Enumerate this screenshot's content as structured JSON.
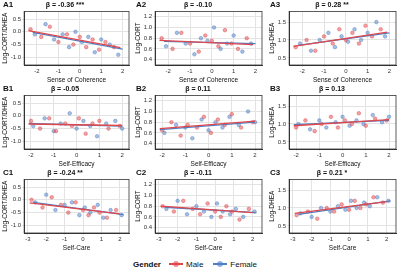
{
  "legend_title": "Gender",
  "chart_data": [
    {
      "type": "scatter",
      "panel": "A1",
      "title": "β = -0.36 ***",
      "x_label": "Sense of Coherence",
      "y_label": "Log-CORT/DHEA",
      "xlim": [
        -2.6,
        2.3
      ],
      "xticks": [
        -2,
        -1,
        0,
        1,
        2
      ],
      "ylim": [
        -1.3,
        0.8
      ],
      "yticks": [
        {
          "value": -1,
          "label": "-1.0"
        },
        -0.5,
        {
          "value": 0,
          "label": "0.0"
        },
        0.5
      ],
      "grid": true,
      "series": [
        {
          "name": "Male",
          "color": "#e0474c",
          "x": [
            -2.3,
            -1.8,
            -1.4,
            -1.0,
            -0.6,
            -0.3,
            0.0,
            0.3,
            0.6,
            0.9,
            1.2,
            1.6
          ],
          "values": [
            0.1,
            -0.2,
            0.2,
            -0.4,
            -0.1,
            -0.5,
            -0.2,
            -0.6,
            -0.3,
            -0.7,
            -0.4,
            -0.6
          ],
          "fit_x": [
            -2.4,
            1.9
          ],
          "fit_values": [
            0.05,
            -0.62
          ]
        },
        {
          "name": "Female",
          "color": "#4f7fc4",
          "x": [
            -2.1,
            -1.6,
            -1.2,
            -0.8,
            -0.5,
            -0.2,
            0.1,
            0.4,
            0.7,
            1.0,
            1.4,
            1.8
          ],
          "values": [
            -0.1,
            0.3,
            -0.3,
            -0.1,
            -0.6,
            0.0,
            -0.4,
            -0.2,
            -0.8,
            -0.3,
            -0.5,
            -0.9
          ],
          "fit_x": [
            -2.2,
            2.0
          ],
          "fit_values": [
            -0.02,
            -0.68
          ]
        }
      ]
    },
    {
      "type": "scatter",
      "panel": "A2",
      "title": "β = -0.10",
      "x_label": "Sense of Coherence",
      "y_label": "Log-CORT",
      "xlim": [
        -2.6,
        2.3
      ],
      "xticks": [
        -2,
        -1,
        0,
        1,
        2
      ],
      "ylim": [
        0.3,
        1.3
      ],
      "yticks": [
        0.4,
        0.6,
        0.8,
        {
          "value": 1,
          "label": "1.0"
        },
        1.2
      ],
      "grid": true,
      "series": [
        {
          "name": "Male",
          "color": "#e0474c",
          "x": [
            -2.3,
            -1.8,
            -1.4,
            -1.0,
            -0.6,
            -0.3,
            0.0,
            0.3,
            0.6,
            0.9,
            1.2,
            1.6
          ],
          "values": [
            0.8,
            0.6,
            0.9,
            0.7,
            0.55,
            0.85,
            0.75,
            0.65,
            0.95,
            0.7,
            0.6,
            0.8
          ],
          "fit_x": [
            -2.4,
            1.9
          ],
          "fit_values": [
            0.76,
            0.68
          ]
        },
        {
          "name": "Female",
          "color": "#4f7fc4",
          "x": [
            -2.1,
            -1.6,
            -1.2,
            -0.8,
            -0.5,
            -0.2,
            0.1,
            0.4,
            0.7,
            1.0,
            1.4,
            1.8
          ],
          "values": [
            0.65,
            0.9,
            0.7,
            0.5,
            0.8,
            0.75,
            1.0,
            0.6,
            0.7,
            0.85,
            0.55,
            0.7
          ],
          "fit_x": [
            -2.2,
            2.0
          ],
          "fit_values": [
            0.74,
            0.7
          ]
        }
      ]
    },
    {
      "type": "scatter",
      "panel": "A3",
      "title": "β = 0.28 **",
      "x_label": "Sense of Coherence",
      "y_label": "Log-DHEA",
      "xlim": [
        -2.6,
        2.3
      ],
      "xticks": [
        -2,
        -1,
        0,
        1,
        2
      ],
      "ylim": [
        0.3,
        1.8
      ],
      "yticks": [
        0.5,
        {
          "value": 1,
          "label": "1.0"
        },
        1.5
      ],
      "grid": true,
      "series": [
        {
          "name": "Male",
          "color": "#e0474c",
          "x": [
            -2.3,
            -1.8,
            -1.4,
            -1.0,
            -0.6,
            -0.3,
            0.0,
            0.3,
            0.6,
            0.9,
            1.2,
            1.6
          ],
          "values": [
            0.8,
            1.0,
            0.7,
            1.1,
            0.9,
            1.3,
            1.0,
            1.2,
            0.9,
            1.4,
            1.1,
            1.3
          ],
          "fit_x": [
            -2.4,
            1.9
          ],
          "fit_values": [
            0.82,
            1.22
          ]
        },
        {
          "name": "Female",
          "color": "#4f7fc4",
          "x": [
            -2.1,
            -1.6,
            -1.2,
            -0.8,
            -0.5,
            -0.2,
            0.1,
            0.4,
            0.7,
            1.0,
            1.4,
            1.8
          ],
          "values": [
            0.9,
            0.7,
            1.0,
            1.2,
            0.8,
            1.1,
            0.95,
            1.3,
            1.0,
            1.2,
            1.5,
            1.1
          ],
          "fit_x": [
            -2.2,
            2.0
          ],
          "fit_values": [
            0.85,
            1.2
          ]
        }
      ]
    },
    {
      "type": "scatter",
      "panel": "B1",
      "title": "β = -0.05",
      "x_label": "Self-Efficacy",
      "y_label": "Log-CORT/DHEA",
      "xlim": [
        -2.3,
        2.3
      ],
      "xticks": [
        -2,
        -1,
        0,
        1,
        2
      ],
      "ylim": [
        -1.3,
        0.8
      ],
      "yticks": [
        {
          "value": -1,
          "label": "-1.0"
        },
        -0.5,
        {
          "value": 0,
          "label": "0.0"
        },
        0.5
      ],
      "grid": true,
      "series": [
        {
          "name": "Male",
          "color": "#e0474c",
          "x": [
            -2.0,
            -1.6,
            -1.2,
            -0.9,
            -0.5,
            -0.2,
            0.1,
            0.4,
            0.7,
            1.0,
            1.4,
            1.9
          ],
          "values": [
            -0.2,
            -0.5,
            -0.1,
            -0.6,
            -0.3,
            -0.4,
            -0.1,
            -0.7,
            -0.3,
            -0.2,
            -0.5,
            -0.4
          ],
          "fit_x": [
            -2.1,
            2.0
          ],
          "fit_values": [
            -0.32,
            -0.38
          ]
        },
        {
          "name": "Female",
          "color": "#4f7fc4",
          "x": [
            -1.9,
            -1.4,
            -1.0,
            -0.7,
            -0.3,
            0.0,
            0.3,
            0.6,
            0.9,
            1.3,
            1.7,
            2.0
          ],
          "values": [
            -0.4,
            -0.1,
            -0.6,
            -0.3,
            0.1,
            -0.5,
            -0.2,
            -0.4,
            -0.8,
            -0.3,
            -0.2,
            -0.5
          ],
          "fit_x": [
            -2.1,
            2.0
          ],
          "fit_values": [
            -0.3,
            -0.4
          ]
        }
      ]
    },
    {
      "type": "scatter",
      "panel": "B2",
      "title": "β = 0.11",
      "x_label": "Self-Efficacy",
      "y_label": "Log-CORT",
      "xlim": [
        -2.3,
        2.3
      ],
      "xticks": [
        -2,
        -1,
        0,
        1,
        2
      ],
      "ylim": [
        0.3,
        1.3
      ],
      "yticks": [
        0.4,
        0.6,
        0.8,
        {
          "value": 1,
          "label": "1.0"
        },
        1.2
      ],
      "grid": true,
      "series": [
        {
          "name": "Male",
          "color": "#e0474c",
          "x": [
            -2.0,
            -1.6,
            -1.2,
            -0.9,
            -0.5,
            -0.2,
            0.1,
            0.4,
            0.7,
            1.0,
            1.4,
            1.9
          ],
          "values": [
            0.65,
            0.8,
            0.55,
            0.75,
            0.7,
            0.9,
            0.6,
            0.85,
            0.75,
            0.95,
            0.7,
            0.8
          ],
          "fit_x": [
            -2.1,
            2.0
          ],
          "fit_values": [
            0.68,
            0.82
          ]
        },
        {
          "name": "Female",
          "color": "#4f7fc4",
          "x": [
            -1.9,
            -1.4,
            -1.0,
            -0.7,
            -0.3,
            0.0,
            0.3,
            0.6,
            0.9,
            1.3,
            1.7,
            2.0
          ],
          "values": [
            0.6,
            0.75,
            0.7,
            0.5,
            0.85,
            0.65,
            0.8,
            0.7,
            0.9,
            0.75,
            1.0,
            0.8
          ],
          "fit_x": [
            -2.1,
            2.0
          ],
          "fit_values": [
            0.66,
            0.8
          ]
        }
      ]
    },
    {
      "type": "scatter",
      "panel": "B3",
      "title": "β = 0.13",
      "x_label": "Self-Efficacy",
      "y_label": "Log-DHEA",
      "xlim": [
        -2.3,
        2.3
      ],
      "xticks": [
        -2,
        -1,
        0,
        1,
        2
      ],
      "ylim": [
        0.3,
        1.8
      ],
      "yticks": [
        0.5,
        {
          "value": 1,
          "label": "1.0"
        },
        1.5
      ],
      "grid": true,
      "series": [
        {
          "name": "Male",
          "color": "#e0474c",
          "x": [
            -2.0,
            -1.6,
            -1.2,
            -0.9,
            -0.5,
            -0.2,
            0.1,
            0.4,
            0.7,
            1.0,
            1.4,
            1.9
          ],
          "values": [
            0.9,
            1.1,
            0.8,
            1.0,
            1.2,
            0.9,
            1.1,
            1.0,
            1.3,
            0.95,
            1.15,
            1.1
          ],
          "fit_x": [
            -2.1,
            2.0
          ],
          "fit_values": [
            0.95,
            1.12
          ]
        },
        {
          "name": "Female",
          "color": "#4f7fc4",
          "x": [
            -1.9,
            -1.4,
            -1.0,
            -0.7,
            -0.3,
            0.0,
            0.3,
            0.6,
            0.9,
            1.3,
            1.7,
            2.0
          ],
          "values": [
            1.0,
            0.85,
            1.1,
            0.9,
            1.05,
            1.2,
            0.95,
            1.1,
            1.0,
            1.25,
            1.05,
            1.2
          ],
          "fit_x": [
            -2.1,
            2.0
          ],
          "fit_values": [
            0.98,
            1.1
          ]
        }
      ]
    },
    {
      "type": "scatter",
      "panel": "C1",
      "title": "β = -0.24 **",
      "x_label": "Self-Care",
      "y_label": "Log-CORT/DHEA",
      "xlim": [
        -3.2,
        2.5
      ],
      "xticks": [
        -3,
        -2,
        -1,
        0,
        1,
        2
      ],
      "ylim": [
        -1.3,
        0.8
      ],
      "yticks": [
        {
          "value": -1,
          "label": "-1.0"
        },
        -0.5,
        {
          "value": 0,
          "label": "0.0"
        },
        0.5
      ],
      "grid": true,
      "series": [
        {
          "name": "Male",
          "color": "#e0474c",
          "x": [
            -2.8,
            -2.2,
            -1.7,
            -1.2,
            -0.8,
            -0.4,
            0.0,
            0.3,
            0.6,
            0.9,
            1.3,
            1.8
          ],
          "values": [
            0.0,
            -0.3,
            0.1,
            -0.2,
            -0.5,
            -0.1,
            -0.4,
            -0.6,
            -0.3,
            -0.5,
            -0.7,
            -0.4
          ],
          "fit_x": [
            -2.9,
            2.0
          ],
          "fit_values": [
            -0.12,
            -0.55
          ]
        },
        {
          "name": "Female",
          "color": "#4f7fc4",
          "x": [
            -2.6,
            -2.0,
            -1.5,
            -1.0,
            -0.6,
            -0.2,
            0.1,
            0.4,
            0.8,
            1.1,
            1.5,
            2.1
          ],
          "values": [
            -0.1,
            0.2,
            -0.4,
            -0.2,
            -0.1,
            -0.6,
            -0.3,
            -0.5,
            -0.2,
            -0.7,
            -0.4,
            -0.6
          ],
          "fit_x": [
            -2.7,
            2.2
          ],
          "fit_values": [
            -0.1,
            -0.58
          ]
        }
      ]
    },
    {
      "type": "scatter",
      "panel": "C2",
      "title": "β = -0.11",
      "x_label": "Self-Care",
      "y_label": "Log-CORT",
      "xlim": [
        -3.2,
        2.5
      ],
      "xticks": [
        -3,
        -2,
        -1,
        0,
        1,
        2
      ],
      "ylim": [
        0.3,
        1.3
      ],
      "yticks": [
        0.4,
        0.6,
        0.8,
        {
          "value": 1,
          "label": "1.0"
        },
        1.2
      ],
      "grid": true,
      "series": [
        {
          "name": "Male",
          "color": "#e0474c",
          "x": [
            -2.8,
            -2.2,
            -1.7,
            -1.2,
            -0.8,
            -0.4,
            0.0,
            0.3,
            0.6,
            0.9,
            1.3,
            1.8
          ],
          "values": [
            0.8,
            0.7,
            0.9,
            0.75,
            0.65,
            0.85,
            0.7,
            0.6,
            0.8,
            0.7,
            0.55,
            0.75
          ],
          "fit_x": [
            -2.9,
            2.0
          ],
          "fit_values": [
            0.8,
            0.68
          ]
        },
        {
          "name": "Female",
          "color": "#4f7fc4",
          "x": [
            -2.6,
            -2.0,
            -1.5,
            -1.0,
            -0.6,
            -0.2,
            0.1,
            0.4,
            0.8,
            1.1,
            1.5,
            2.1
          ],
          "values": [
            0.75,
            0.9,
            0.65,
            0.8,
            0.7,
            0.6,
            0.85,
            0.7,
            0.65,
            0.75,
            0.6,
            0.7
          ],
          "fit_x": [
            -2.7,
            2.2
          ],
          "fit_values": [
            0.78,
            0.68
          ]
        }
      ]
    },
    {
      "type": "scatter",
      "panel": "C3",
      "title": "β = 0.21 *",
      "x_label": "Self-Care",
      "y_label": "Log-DHEA",
      "xlim": [
        -3.2,
        2.5
      ],
      "xticks": [
        -3,
        -2,
        -1,
        0,
        1,
        2
      ],
      "ylim": [
        0.3,
        1.8
      ],
      "yticks": [
        0.5,
        {
          "value": 1,
          "label": "1.0"
        },
        1.5
      ],
      "grid": true,
      "series": [
        {
          "name": "Male",
          "color": "#e0474c",
          "x": [
            -2.8,
            -2.2,
            -1.7,
            -1.2,
            -0.8,
            -0.4,
            0.0,
            0.3,
            0.6,
            0.9,
            1.3,
            1.8
          ],
          "values": [
            0.8,
            0.9,
            0.7,
            1.0,
            0.9,
            1.1,
            0.95,
            1.2,
            1.0,
            1.1,
            1.3,
            1.15
          ],
          "fit_x": [
            -2.9,
            2.0
          ],
          "fit_values": [
            0.85,
            1.18
          ]
        },
        {
          "name": "Female",
          "color": "#4f7fc4",
          "x": [
            -2.6,
            -2.0,
            -1.5,
            -1.0,
            -0.6,
            -0.2,
            0.1,
            0.4,
            0.8,
            1.1,
            1.5,
            2.1
          ],
          "values": [
            0.85,
            0.75,
            1.0,
            0.9,
            1.05,
            0.95,
            1.2,
            1.0,
            1.15,
            1.05,
            1.3,
            1.2
          ],
          "fit_x": [
            -2.7,
            2.2
          ],
          "fit_values": [
            0.82,
            1.2
          ]
        }
      ]
    }
  ]
}
